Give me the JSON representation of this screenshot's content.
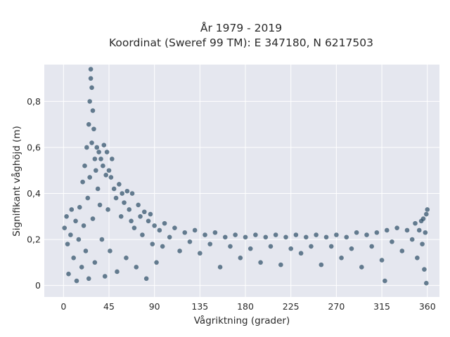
{
  "chart_data": {
    "type": "scatter",
    "title_lines": [
      "År 1979 - 2019",
      "Koordinat (Sweref 99 TM): E 347180, N 6217503"
    ],
    "xlabel": "Vågriktning (grader)",
    "ylabel": "Signifikant våghöjd (m)",
    "xlim": [
      -19,
      372
    ],
    "ylim": [
      -0.05,
      0.96
    ],
    "xticks": [
      0,
      45,
      90,
      135,
      180,
      225,
      270,
      315,
      360
    ],
    "xtick_labels": [
      "0",
      "45",
      "90",
      "135",
      "180",
      "225",
      "270",
      "315",
      "360"
    ],
    "yticks": [
      0,
      0.2,
      0.4,
      0.6,
      0.8
    ],
    "ytick_labels": [
      "0",
      "0,2",
      "0,4",
      "0,6",
      "0,8"
    ],
    "grid": true,
    "marker_color": "#2f5168",
    "plot_background": "#e5e7ef",
    "series": [
      {
        "points": [
          [
            1,
            0.25
          ],
          [
            3,
            0.3
          ],
          [
            4,
            0.18
          ],
          [
            5,
            0.05
          ],
          [
            7,
            0.22
          ],
          [
            8,
            0.33
          ],
          [
            10,
            0.12
          ],
          [
            12,
            0.28
          ],
          [
            13,
            0.02
          ],
          [
            15,
            0.2
          ],
          [
            16,
            0.34
          ],
          [
            18,
            0.08
          ],
          [
            19,
            0.45
          ],
          [
            20,
            0.26
          ],
          [
            21,
            0.52
          ],
          [
            22,
            0.15
          ],
          [
            23,
            0.6
          ],
          [
            24,
            0.38
          ],
          [
            25,
            0.7
          ],
          [
            25,
            0.03
          ],
          [
            26,
            0.8
          ],
          [
            26,
            0.47
          ],
          [
            27,
            0.9
          ],
          [
            27,
            0.94
          ],
          [
            28,
            0.86
          ],
          [
            28,
            0.62
          ],
          [
            29,
            0.76
          ],
          [
            29,
            0.29
          ],
          [
            30,
            0.68
          ],
          [
            31,
            0.55
          ],
          [
            31,
            0.1
          ],
          [
            32,
            0.5
          ],
          [
            33,
            0.6
          ],
          [
            34,
            0.42
          ],
          [
            35,
            0.58
          ],
          [
            36,
            0.35
          ],
          [
            37,
            0.55
          ],
          [
            38,
            0.2
          ],
          [
            39,
            0.52
          ],
          [
            40,
            0.61
          ],
          [
            41,
            0.04
          ],
          [
            42,
            0.48
          ],
          [
            43,
            0.58
          ],
          [
            44,
            0.33
          ],
          [
            45,
            0.5
          ],
          [
            46,
            0.15
          ],
          [
            47,
            0.47
          ],
          [
            48,
            0.55
          ],
          [
            50,
            0.42
          ],
          [
            52,
            0.38
          ],
          [
            53,
            0.06
          ],
          [
            55,
            0.44
          ],
          [
            57,
            0.3
          ],
          [
            58,
            0.4
          ],
          [
            60,
            0.36
          ],
          [
            62,
            0.12
          ],
          [
            63,
            0.41
          ],
          [
            65,
            0.33
          ],
          [
            67,
            0.28
          ],
          [
            68,
            0.4
          ],
          [
            70,
            0.25
          ],
          [
            72,
            0.08
          ],
          [
            74,
            0.35
          ],
          [
            76,
            0.3
          ],
          [
            78,
            0.22
          ],
          [
            80,
            0.32
          ],
          [
            82,
            0.03
          ],
          [
            84,
            0.28
          ],
          [
            86,
            0.31
          ],
          [
            88,
            0.18
          ],
          [
            90,
            0.26
          ],
          [
            92,
            0.1
          ],
          [
            95,
            0.24
          ],
          [
            98,
            0.17
          ],
          [
            100,
            0.27
          ],
          [
            105,
            0.21
          ],
          [
            110,
            0.25
          ],
          [
            115,
            0.15
          ],
          [
            120,
            0.23
          ],
          [
            125,
            0.19
          ],
          [
            130,
            0.24
          ],
          [
            135,
            0.14
          ],
          [
            140,
            0.22
          ],
          [
            145,
            0.18
          ],
          [
            150,
            0.23
          ],
          [
            155,
            0.08
          ],
          [
            160,
            0.21
          ],
          [
            165,
            0.17
          ],
          [
            170,
            0.22
          ],
          [
            175,
            0.12
          ],
          [
            180,
            0.21
          ],
          [
            185,
            0.16
          ],
          [
            190,
            0.22
          ],
          [
            195,
            0.1
          ],
          [
            200,
            0.21
          ],
          [
            205,
            0.17
          ],
          [
            210,
            0.22
          ],
          [
            215,
            0.09
          ],
          [
            220,
            0.21
          ],
          [
            225,
            0.16
          ],
          [
            230,
            0.22
          ],
          [
            235,
            0.14
          ],
          [
            240,
            0.21
          ],
          [
            245,
            0.17
          ],
          [
            250,
            0.22
          ],
          [
            255,
            0.09
          ],
          [
            260,
            0.21
          ],
          [
            265,
            0.17
          ],
          [
            270,
            0.22
          ],
          [
            275,
            0.12
          ],
          [
            280,
            0.21
          ],
          [
            285,
            0.16
          ],
          [
            290,
            0.23
          ],
          [
            295,
            0.08
          ],
          [
            300,
            0.22
          ],
          [
            305,
            0.17
          ],
          [
            310,
            0.23
          ],
          [
            315,
            0.11
          ],
          [
            318,
            0.02
          ],
          [
            320,
            0.24
          ],
          [
            325,
            0.19
          ],
          [
            330,
            0.25
          ],
          [
            335,
            0.15
          ],
          [
            340,
            0.24
          ],
          [
            345,
            0.2
          ],
          [
            348,
            0.27
          ],
          [
            350,
            0.12
          ],
          [
            352,
            0.24
          ],
          [
            354,
            0.28
          ],
          [
            355,
            0.18
          ],
          [
            356,
            0.29
          ],
          [
            357,
            0.07
          ],
          [
            358,
            0.23
          ],
          [
            359,
            0.31
          ],
          [
            360,
            0.33
          ],
          [
            359,
            0.01
          ]
        ]
      }
    ]
  }
}
